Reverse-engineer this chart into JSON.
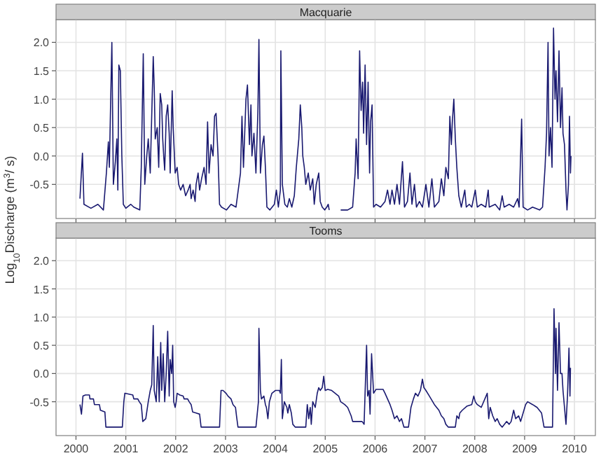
{
  "chart_data": [
    {
      "type": "line",
      "title": "Macquarie",
      "ylabel": "Log$_{10}$Discharge (m$^{3}$/ s)",
      "xlim": [
        1999.6,
        2010.42
      ],
      "ylim": [
        -1.1,
        2.4
      ],
      "xticks": [
        2000,
        2001,
        2002,
        2003,
        2004,
        2005,
        2006,
        2007,
        2008,
        2009,
        2010
      ],
      "yticks": [
        -0.5,
        {
          "value": 0,
          "label": "0.0"
        },
        0.5,
        {
          "value": 1,
          "label": "1.0"
        },
        1.5,
        {
          "value": 2,
          "label": "2.0"
        }
      ],
      "tick_labels": "y",
      "grid": true,
      "series": [
        {
          "color": "#191970",
          "x": [
            2000.08,
            2000.13,
            2000.16,
            2000.3,
            2000.44,
            2000.55,
            2000.61,
            2000.65,
            2000.67,
            2000.7,
            2000.72,
            2000.75,
            2000.79,
            2000.82,
            2000.84,
            2000.86,
            2000.89,
            2000.92,
            2000.95,
            2001.0,
            2001.1,
            2001.16,
            2001.28,
            2001.31,
            2001.35,
            2001.38,
            2001.42,
            2001.45,
            2001.49,
            2001.55,
            2001.57,
            2001.59,
            2001.63,
            2001.66,
            2001.69,
            2001.72,
            2001.74,
            2001.76,
            2001.78,
            2001.81,
            2001.84,
            2001.87,
            2001.89,
            2001.93,
            2001.95,
            2001.99,
            2002.03,
            2002.06,
            2002.1,
            2002.15,
            2002.2,
            2002.25,
            2002.29,
            2002.31,
            2002.35,
            2002.39,
            2002.41,
            2002.45,
            2002.48,
            2002.52,
            2002.57,
            2002.61,
            2002.64,
            2002.67,
            2002.71,
            2002.75,
            2002.78,
            2002.81,
            2002.85,
            2002.88,
            2002.92,
            2003.02,
            2003.11,
            2003.21,
            2003.3,
            2003.33,
            2003.36,
            2003.41,
            2003.44,
            2003.48,
            2003.51,
            2003.53,
            2003.57,
            2003.61,
            2003.65,
            2003.67,
            2003.7,
            2003.74,
            2003.77,
            2003.8,
            2003.83,
            2003.89,
            2003.98,
            2004.02,
            2004.06,
            2004.1,
            2004.11,
            2004.14,
            2004.19,
            2004.24,
            2004.28,
            2004.33,
            2004.38,
            2004.42,
            2004.47,
            2004.5,
            2004.53,
            2004.55,
            2004.58,
            2004.61,
            2004.66,
            2004.7,
            2004.75,
            2004.78,
            2004.82,
            2004.87,
            2004.9,
            2004.94,
            2004.99,
            2005.03,
            2005.06,
            2005.08,
            2005.15,
            2005.31,
            2005.45,
            2005.55,
            2005.6,
            2005.62,
            2005.66,
            2005.69,
            2005.72,
            2005.75,
            2005.77,
            2005.8,
            2005.83,
            2005.86,
            2005.89,
            2005.91,
            2005.94,
            2005.97,
            2006.02,
            2006.11,
            2006.2,
            2006.25,
            2006.3,
            2006.34,
            2006.39,
            2006.44,
            2006.49,
            2006.55,
            2006.59,
            2006.65,
            2006.7,
            2006.74,
            2006.79,
            2006.83,
            2006.89,
            2006.95,
            2007.02,
            2007.08,
            2007.14,
            2007.19,
            2007.28,
            2007.33,
            2007.38,
            2007.42,
            2007.47,
            2007.5,
            2007.53,
            2007.55,
            2007.58,
            2007.61,
            2007.64,
            2007.68,
            2007.73,
            2007.8,
            2007.83,
            2007.89,
            2007.94,
            2008.01,
            2008.05,
            2008.13,
            2008.22,
            2008.27,
            2008.29,
            2008.41,
            2008.5,
            2008.55,
            2008.59,
            2008.69,
            2008.78,
            2008.86,
            2008.89,
            2008.94,
            2008.97,
            2009.06,
            2009.16,
            2009.3,
            2009.36,
            2009.41,
            2009.44,
            2009.47,
            2009.49,
            2009.52,
            2009.55,
            2009.58,
            2009.61,
            2009.63,
            2009.66,
            2009.69,
            2009.72,
            2009.75,
            2009.77,
            2009.8,
            2009.83,
            2009.85,
            2009.88,
            2009.9,
            2009.92,
            2009.93
          ],
          "values": [
            -0.75,
            0.05,
            -0.85,
            -0.92,
            -0.85,
            -0.95,
            -0.3,
            0.25,
            -0.2,
            1.15,
            2.0,
            -0.5,
            -0.1,
            0.3,
            -0.6,
            1.6,
            1.5,
            0.0,
            -0.85,
            -0.92,
            -0.85,
            -0.9,
            -0.95,
            -0.2,
            1.8,
            -0.5,
            0.0,
            0.3,
            -0.3,
            1.75,
            1.2,
            0.3,
            0.5,
            -0.2,
            1.1,
            0.9,
            0.3,
            0.0,
            -0.25,
            0.7,
            0.9,
            0.4,
            -0.3,
            1.15,
            0.5,
            -0.3,
            -0.2,
            -0.5,
            -0.6,
            -0.5,
            -0.7,
            -0.6,
            -0.5,
            -0.75,
            -0.6,
            -0.8,
            -0.5,
            -0.3,
            -0.6,
            -0.4,
            -0.2,
            -0.5,
            0.6,
            -0.3,
            0.2,
            0.0,
            0.7,
            0.75,
            0.0,
            -0.85,
            -0.9,
            -0.95,
            -0.85,
            -0.9,
            -0.3,
            0.7,
            -0.2,
            1.0,
            1.25,
            0.2,
            0.9,
            0.0,
            0.4,
            -0.3,
            0.8,
            2.05,
            -0.3,
            0.2,
            0.35,
            -0.2,
            -0.9,
            -0.95,
            -0.85,
            -0.6,
            -0.9,
            -0.6,
            1.85,
            -0.5,
            -0.85,
            -0.9,
            -0.75,
            -0.9,
            -0.7,
            -0.2,
            0.3,
            0.9,
            0.5,
            0.0,
            -0.2,
            -0.5,
            -0.3,
            -0.6,
            -0.4,
            -0.85,
            -0.5,
            -0.3,
            -0.8,
            -0.9,
            -0.95,
            -0.9,
            -0.85,
            -0.95,
            null,
            -0.95,
            -0.95,
            -0.9,
            -0.3,
            0.3,
            -0.4,
            1.85,
            0.8,
            1.3,
            0.4,
            1.6,
            0.2,
            1.3,
            -0.3,
            0.6,
            0.9,
            -0.9,
            -0.85,
            -0.9,
            -0.8,
            -0.6,
            -0.85,
            -0.6,
            -0.85,
            -0.5,
            -0.85,
            -0.1,
            -0.9,
            -0.8,
            -0.3,
            -0.85,
            -0.5,
            -0.9,
            -0.8,
            -0.9,
            -0.5,
            -0.9,
            -0.4,
            -0.9,
            -0.8,
            -0.4,
            -0.7,
            -0.2,
            -0.4,
            0.7,
            0.2,
            0.6,
            1.0,
            0.3,
            -0.2,
            -0.7,
            -0.9,
            -0.6,
            -0.9,
            -0.85,
            -0.9,
            -0.6,
            -0.9,
            -0.85,
            -0.9,
            -0.6,
            -0.9,
            -0.85,
            -0.95,
            -0.7,
            -0.9,
            -0.85,
            -0.9,
            -0.75,
            -0.9,
            0.65,
            -0.9,
            -0.95,
            -0.9,
            -0.95,
            -0.9,
            -0.2,
            0.4,
            2.0,
            0.0,
            0.5,
            -0.2,
            2.25,
            1.0,
            1.5,
            0.6,
            1.85,
            0.5,
            1.2,
            0.4,
            0.2,
            -0.6,
            -0.95,
            -0.5,
            0.7,
            -0.3,
            0.0
          ]
        }
      ]
    },
    {
      "type": "line",
      "title": "Tooms",
      "xlim": [
        1999.6,
        2010.42
      ],
      "ylim": [
        -1.1,
        2.4
      ],
      "xticks": [
        2000,
        2001,
        2002,
        2003,
        2004,
        2005,
        2006,
        2007,
        2008,
        2009,
        2010
      ],
      "yticks": [
        -0.5,
        {
          "value": 0,
          "label": "0.0"
        },
        0.5,
        {
          "value": 1,
          "label": "1.0"
        },
        1.5,
        {
          "value": 2,
          "label": "2.0"
        }
      ],
      "grid": true,
      "series": [
        {
          "color": "#191970",
          "x": [
            2000.08,
            2000.11,
            2000.14,
            2000.19,
            2000.27,
            2000.28,
            2000.35,
            2000.37,
            2000.47,
            2000.49,
            2000.58,
            2000.6,
            2000.93,
            2000.96,
            2000.98,
            2001.14,
            2001.16,
            2001.24,
            2001.27,
            2001.31,
            2001.34,
            2001.4,
            2001.45,
            2001.49,
            2001.52,
            2001.55,
            2001.57,
            2001.61,
            2001.64,
            2001.67,
            2001.7,
            2001.72,
            2001.75,
            2001.78,
            2001.81,
            2001.84,
            2001.87,
            2001.89,
            2001.92,
            2001.94,
            2001.96,
            2001.99,
            2002.01,
            2002.03,
            2002.08,
            2002.15,
            2002.17,
            2002.24,
            2002.27,
            2002.31,
            2002.34,
            2002.41,
            2002.48,
            2002.51,
            2002.88,
            2002.91,
            2002.95,
            2003.01,
            2003.05,
            2003.11,
            2003.15,
            2003.2,
            2003.22,
            2003.25,
            2003.61,
            2003.66,
            2003.67,
            2003.7,
            2003.72,
            2003.77,
            2003.8,
            2003.82,
            2003.85,
            2003.88,
            2003.93,
            2004.0,
            2004.08,
            2004.1,
            2004.12,
            2004.14,
            2004.18,
            2004.23,
            2004.25,
            2004.28,
            2004.32,
            2004.35,
            2004.4,
            2004.61,
            2004.64,
            2004.67,
            2004.7,
            2004.72,
            2004.75,
            2004.8,
            2004.84,
            2004.87,
            2004.9,
            2004.94,
            2004.97,
            2005.0,
            2005.05,
            2005.13,
            2005.2,
            2005.27,
            2005.31,
            2005.39,
            2005.45,
            2005.52,
            2005.55,
            2005.74,
            2005.78,
            2005.83,
            2005.85,
            2005.88,
            2005.9,
            2005.93,
            2005.97,
            2006.02,
            2006.16,
            2006.2,
            2006.25,
            2006.3,
            2006.34,
            2006.39,
            2006.44,
            2006.49,
            2006.53,
            2006.58,
            2006.67,
            2006.72,
            2006.77,
            2006.81,
            2006.86,
            2006.91,
            2006.95,
            2006.98,
            2007.02,
            2007.09,
            2007.19,
            2007.28,
            2007.33,
            2007.38,
            2007.42,
            2007.47,
            2007.61,
            2007.64,
            2007.68,
            2007.7,
            2007.75,
            2007.84,
            2007.94,
            2007.98,
            2008.01,
            2008.05,
            2008.13,
            2008.25,
            2008.28,
            2008.31,
            2008.36,
            2008.41,
            2008.45,
            2008.5,
            2008.55,
            2008.64,
            2008.69,
            2008.73,
            2008.78,
            2008.82,
            2008.88,
            2008.92,
            2008.97,
            2009.02,
            2009.06,
            2009.16,
            2009.25,
            2009.34,
            2009.39,
            2009.56,
            2009.59,
            2009.62,
            2009.63,
            2009.66,
            2009.69,
            2009.72,
            2009.75,
            2009.77,
            2009.8,
            2009.83,
            2009.86,
            2009.89,
            2009.91,
            2009.92
          ],
          "values": [
            -0.55,
            -0.72,
            -0.4,
            -0.38,
            -0.38,
            -0.45,
            -0.45,
            -0.55,
            -0.55,
            -0.65,
            -0.68,
            -0.95,
            -0.95,
            -0.5,
            -0.35,
            -0.38,
            -0.45,
            -0.45,
            -0.5,
            -0.55,
            -0.85,
            -0.8,
            -0.5,
            -0.3,
            -0.2,
            0.85,
            -0.3,
            -0.5,
            0.3,
            -0.5,
            0.55,
            -0.3,
            0.35,
            -0.5,
            0.0,
            0.75,
            -0.4,
            0.25,
            0.0,
            0.5,
            -0.5,
            -0.6,
            -0.5,
            -0.35,
            -0.38,
            -0.4,
            -0.45,
            -0.45,
            -0.5,
            -0.55,
            -0.68,
            -0.7,
            -0.72,
            -0.95,
            -0.95,
            -0.3,
            -0.3,
            -0.35,
            -0.4,
            -0.45,
            -0.55,
            -0.6,
            -0.75,
            -0.95,
            -0.95,
            -0.5,
            0.8,
            -0.3,
            -0.45,
            -0.4,
            -0.55,
            -0.6,
            -0.8,
            -0.5,
            -0.35,
            -0.3,
            -0.3,
            -0.35,
            0.25,
            -0.8,
            -0.5,
            -0.6,
            -0.7,
            -0.55,
            -0.7,
            -0.9,
            -0.95,
            -0.95,
            -0.55,
            -0.8,
            -0.6,
            -0.9,
            -0.5,
            -0.6,
            -0.35,
            -0.25,
            -0.3,
            -0.25,
            -0.05,
            -0.3,
            -0.28,
            -0.3,
            -0.35,
            -0.4,
            -0.5,
            -0.55,
            -0.6,
            -0.75,
            -0.85,
            -0.85,
            -0.9,
            0.5,
            -0.4,
            -0.3,
            -0.72,
            0.35,
            -0.35,
            -0.28,
            -0.28,
            -0.35,
            -0.45,
            -0.55,
            -0.65,
            -0.8,
            -0.75,
            -0.85,
            -0.8,
            -0.95,
            -0.95,
            -0.6,
            -0.45,
            -0.35,
            -0.4,
            -0.3,
            -0.1,
            -0.25,
            -0.3,
            -0.4,
            -0.55,
            -0.65,
            -0.75,
            -0.8,
            -0.9,
            -0.95,
            -0.95,
            -0.75,
            -0.8,
            -0.7,
            -0.65,
            -0.58,
            -0.55,
            -0.4,
            -0.5,
            -0.55,
            -0.6,
            -0.35,
            -0.8,
            -0.6,
            -0.75,
            -0.85,
            -0.8,
            -0.9,
            -0.95,
            -0.85,
            -0.9,
            -0.85,
            -0.65,
            -0.8,
            -0.75,
            -0.85,
            -0.7,
            -0.55,
            -0.5,
            -0.55,
            -0.6,
            -0.7,
            -0.95,
            -0.95,
            1.15,
            0.0,
            0.8,
            -0.3,
            0.9,
            0.0,
            0.0,
            -0.3,
            -0.6,
            -0.9,
            -0.4,
            0.45,
            -0.4,
            0.1
          ]
        }
      ]
    }
  ]
}
